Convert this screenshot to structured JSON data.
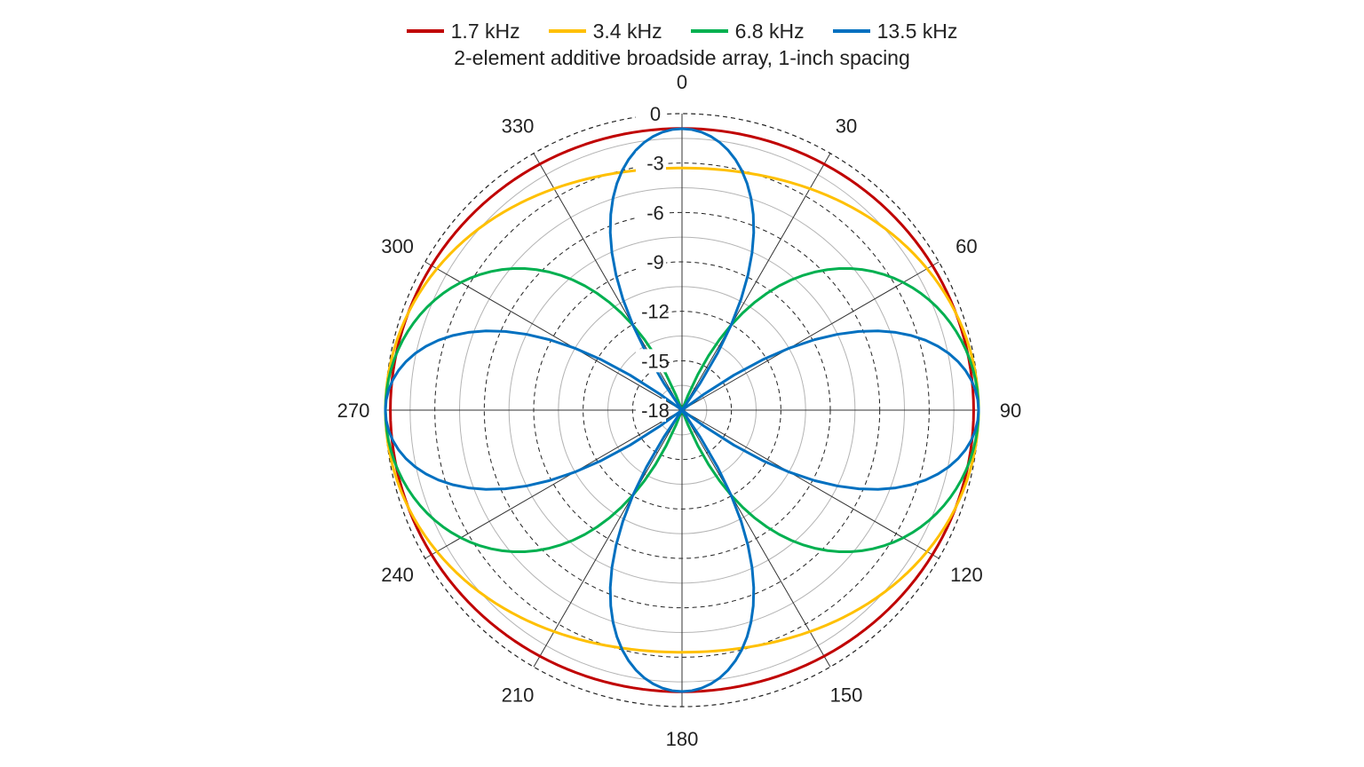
{
  "chart_data": {
    "type": "polar-line",
    "title": "2-element additive broadside array, 1-inch spacing",
    "radial_axis": {
      "min": -18,
      "max": 0,
      "ticks": [
        0,
        -3,
        -6,
        -9,
        -12,
        -15,
        -18
      ],
      "tick_labels": [
        "0",
        "-3",
        "-6",
        "-9",
        "-12",
        "-15",
        "-18"
      ],
      "unit": ""
    },
    "angular_axis": {
      "direction": "clockwise",
      "zero": "top",
      "ticks": [
        0,
        30,
        60,
        90,
        120,
        150,
        180,
        210,
        240,
        270,
        300,
        330
      ],
      "tick_labels": [
        "0",
        "30",
        "60",
        "90",
        "120",
        "150",
        "180",
        "210",
        "240",
        "270",
        "300",
        "330"
      ]
    },
    "legend_position": "top",
    "grid": true,
    "series": [
      {
        "name": "1.7 kHz",
        "color": "#c00000",
        "freq_hz": 1700
      },
      {
        "name": "3.4 kHz",
        "color": "#ffc000",
        "freq_hz": 3400
      },
      {
        "name": "6.8 kHz",
        "color": "#00b050",
        "freq_hz": 6800
      },
      {
        "name": "13.5 kHz",
        "color": "#0070c0",
        "freq_hz": 13500
      }
    ]
  }
}
